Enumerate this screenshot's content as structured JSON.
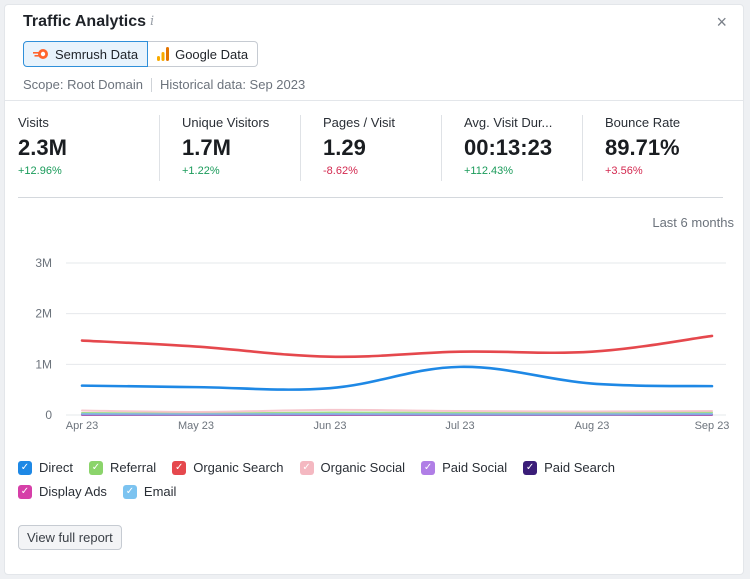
{
  "header": {
    "title": "Traffic Analytics",
    "close_symbol": "×"
  },
  "sources": [
    {
      "label": "Semrush Data",
      "active": true
    },
    {
      "label": "Google Data",
      "active": false
    }
  ],
  "scope": {
    "scope_text": "Scope: Root Domain",
    "historical_text": "Historical data: Sep 2023"
  },
  "metrics": [
    {
      "label": "Visits",
      "value": "2.3M",
      "change": "+12.96%",
      "trend": "pos"
    },
    {
      "label": "Unique Visitors",
      "value": "1.7M",
      "change": "+1.22%",
      "trend": "pos"
    },
    {
      "label": "Pages / Visit",
      "value": "1.29",
      "change": "-8.62%",
      "trend": "neg"
    },
    {
      "label": "Avg. Visit Dur...",
      "value": "00:13:23",
      "change": "+112.43%",
      "trend": "pos"
    },
    {
      "label": "Bounce Rate",
      "value": "89.71%",
      "change": "+3.56%",
      "trend": "neg"
    }
  ],
  "period_label": "Last 6 months",
  "chart_data": {
    "type": "line",
    "x": [
      "Apr 23",
      "May 23",
      "Jun 23",
      "Jul 23",
      "Aug 23",
      "Sep 23"
    ],
    "y_ticks": [
      "3M",
      "2M",
      "1M",
      "0"
    ],
    "ylim": [
      0,
      3000000
    ],
    "grid": true,
    "series": [
      {
        "name": "Direct",
        "color": "#1e88e5",
        "values": [
          580000,
          550000,
          530000,
          950000,
          620000,
          570000
        ]
      },
      {
        "name": "Referral",
        "color": "#8bd46b",
        "values": [
          40000,
          30000,
          50000,
          40000,
          40000,
          50000
        ]
      },
      {
        "name": "Organic Search",
        "color": "#e5484d",
        "values": [
          1470000,
          1350000,
          1150000,
          1250000,
          1250000,
          1560000
        ]
      },
      {
        "name": "Organic Social",
        "color": "#f4b8c1",
        "values": [
          90000,
          60000,
          100000,
          80000,
          70000,
          80000
        ]
      },
      {
        "name": "Paid Social",
        "color": "#b07ee6",
        "values": [
          5000,
          5000,
          5000,
          5000,
          5000,
          5000
        ]
      },
      {
        "name": "Paid Search",
        "color": "#3a1d78",
        "values": [
          5000,
          5000,
          5000,
          5000,
          5000,
          5000
        ]
      },
      {
        "name": "Display Ads",
        "color": "#d63fa8",
        "values": [
          10000,
          10000,
          10000,
          10000,
          10000,
          10000
        ]
      },
      {
        "name": "Email",
        "color": "#7cc3f0",
        "values": [
          20000,
          15000,
          20000,
          15000,
          15000,
          20000
        ]
      }
    ]
  },
  "legend_rows": [
    [
      {
        "name": "Direct",
        "color": "#1e88e5"
      },
      {
        "name": "Referral",
        "color": "#8bd46b"
      },
      {
        "name": "Organic Search",
        "color": "#e5484d"
      },
      {
        "name": "Organic Social",
        "color": "#f4b8c1"
      },
      {
        "name": "Paid Social",
        "color": "#b07ee6"
      },
      {
        "name": "Paid Search",
        "color": "#3a1d78"
      }
    ],
    [
      {
        "name": "Display Ads",
        "color": "#d63fa8"
      },
      {
        "name": "Email",
        "color": "#7cc3f0"
      }
    ]
  ],
  "view_full_report_label": "View full report"
}
